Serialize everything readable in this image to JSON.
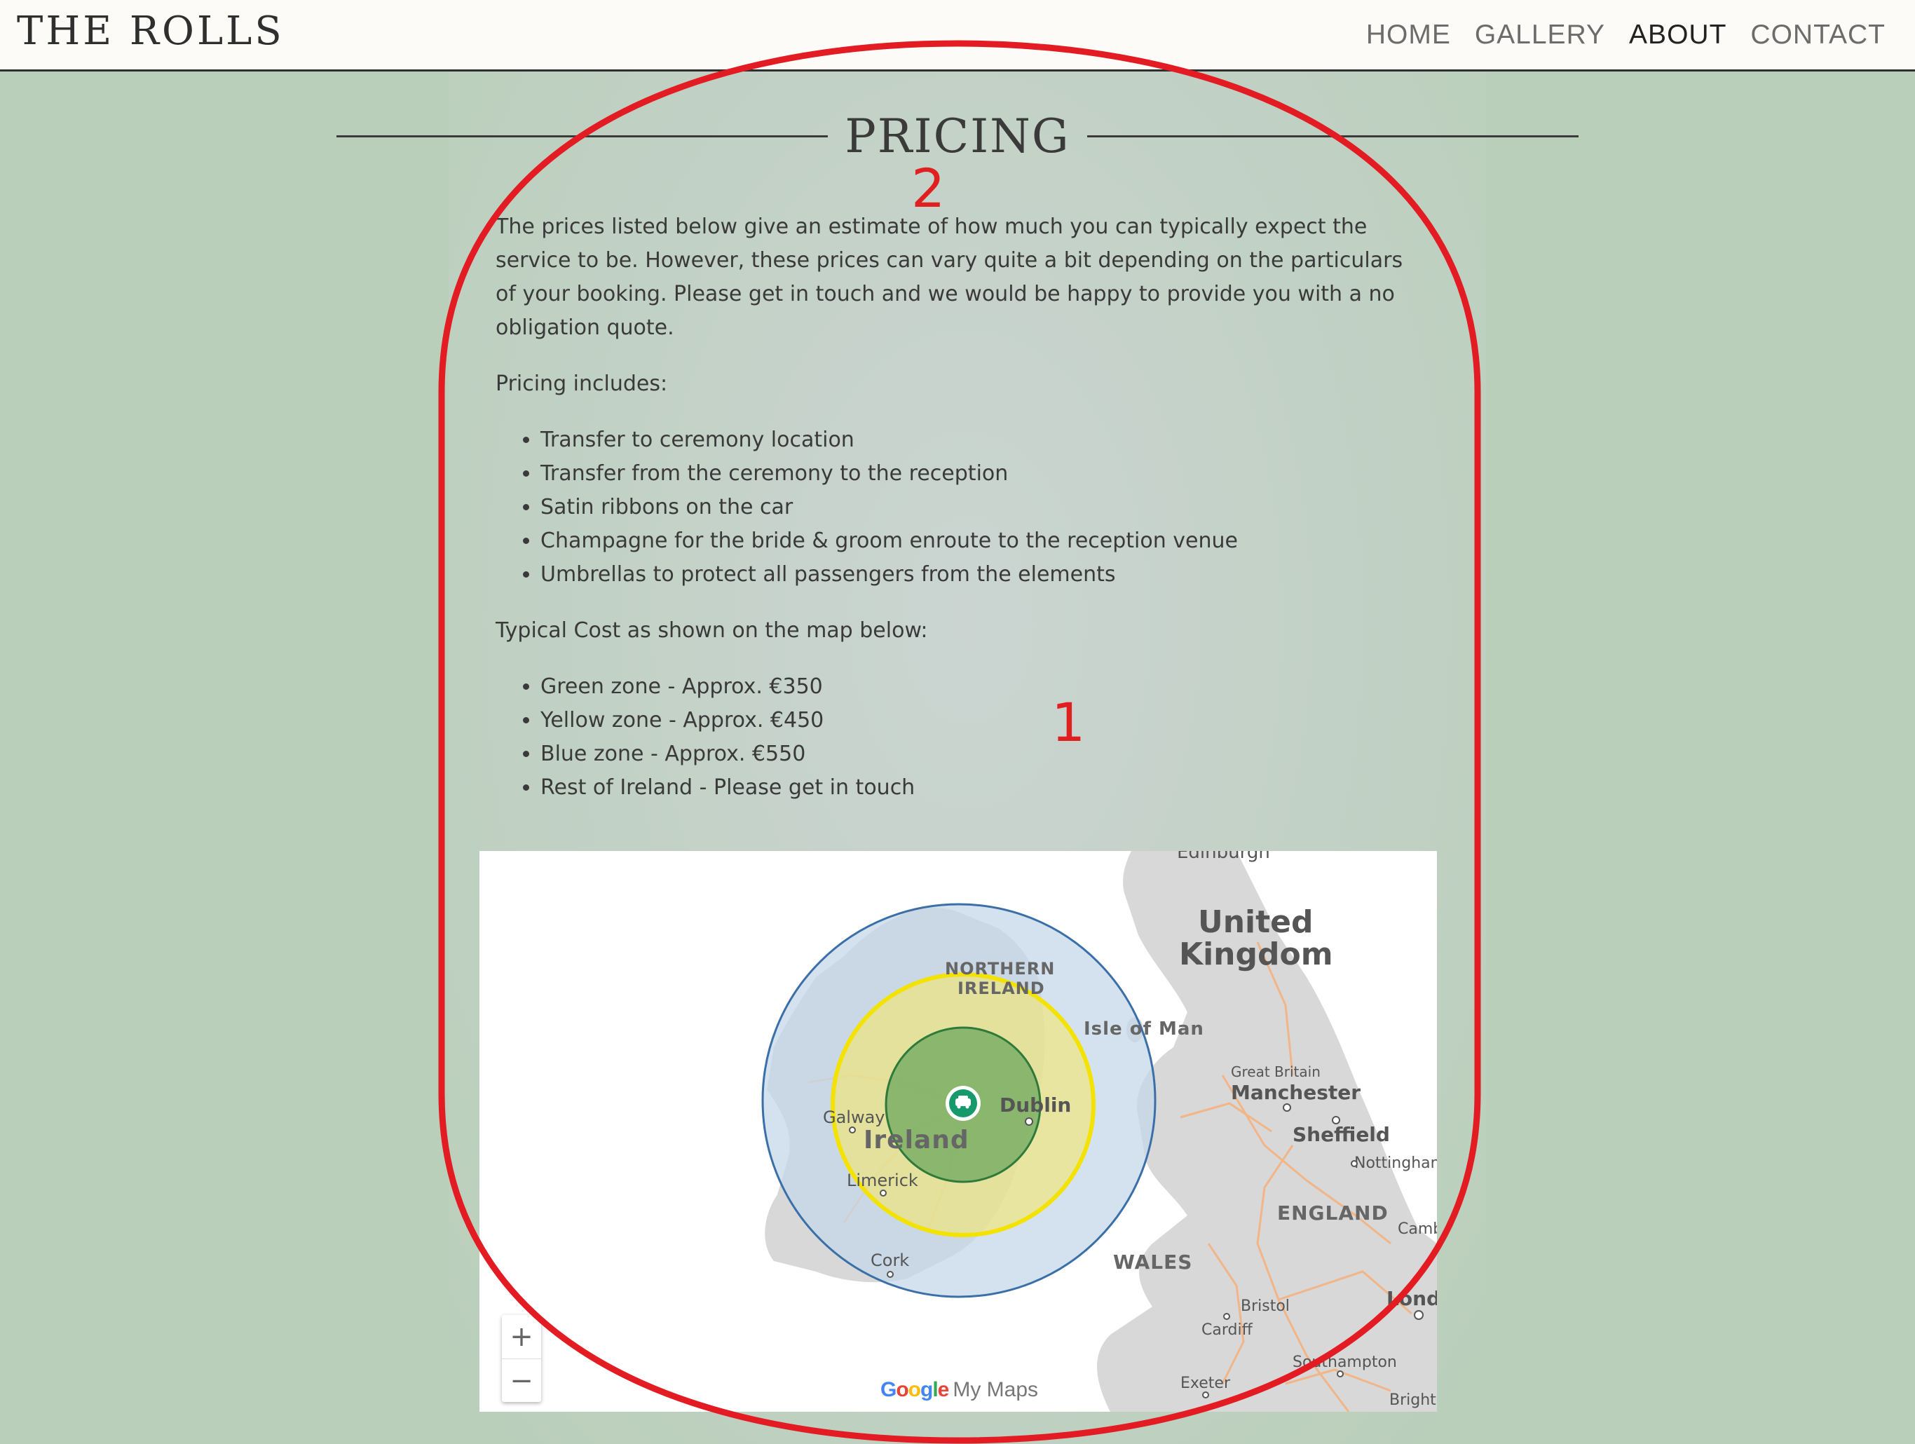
{
  "header": {
    "brand": "THE ROLLS",
    "nav": [
      "HOME",
      "GALLERY",
      "ABOUT",
      "CONTACT"
    ],
    "active_nav": "ABOUT"
  },
  "pricing": {
    "heading": "PRICING",
    "intro": "The prices listed below give an estimate of how much you can typically expect the service to be. However, these prices can vary quite a bit depending on the particulars of your booking. Please get in touch and we would be happy to provide you with a no obligation quote.",
    "includes_label": "Pricing includes:",
    "includes": [
      "Transfer to ceremony location",
      "Transfer from the ceremony to the reception",
      "Satin ribbons on the car",
      "Champagne for the bride & groom enroute to the reception venue",
      "Umbrellas to protect all passengers from the elements"
    ],
    "cost_label": "Typical Cost as shown on the map below:",
    "costs": [
      "Green zone - Approx. €350",
      "Yellow zone - Approx. €450",
      "Blue zone - Approx. €550",
      "Rest of Ireland - Please get in touch"
    ]
  },
  "map": {
    "labels": {
      "edinburgh": "Edinburgh",
      "united": "United",
      "kingdom": "Kingdom",
      "northern": "NORTHERN",
      "ireland_ni": "IRELAND",
      "isle_of_man": "Isle of Man",
      "great_britain": "Great Britain",
      "manchester": "Manchester",
      "sheffield": "Sheffield",
      "nottingham": "Nottingham",
      "galway": "Galway",
      "dublin": "Dublin",
      "ireland": "Ireland",
      "limerick": "Limerick",
      "england": "ENGLAND",
      "cambridge": "Cambr",
      "cork": "Cork",
      "wales": "WALES",
      "london": "Londo",
      "bristol": "Bristol",
      "cardiff": "Cardiff",
      "southampton": "Southampton",
      "exeter": "Exeter",
      "brighton": "Brighto"
    },
    "zoom_in": "+",
    "zoom_out": "−",
    "credit_google": "Google",
    "credit_mymaps": "My Maps",
    "colors": {
      "green_zone": "#3a8a3a",
      "yellow_zone": "#f4e200",
      "blue_zone": "#3b6fa8",
      "land": "#d9d9d9",
      "roads": "#f6b07a"
    },
    "marker_icon": "car-icon"
  },
  "annotations": {
    "label_1": "1",
    "label_2": "2",
    "color": "#e31b23"
  }
}
